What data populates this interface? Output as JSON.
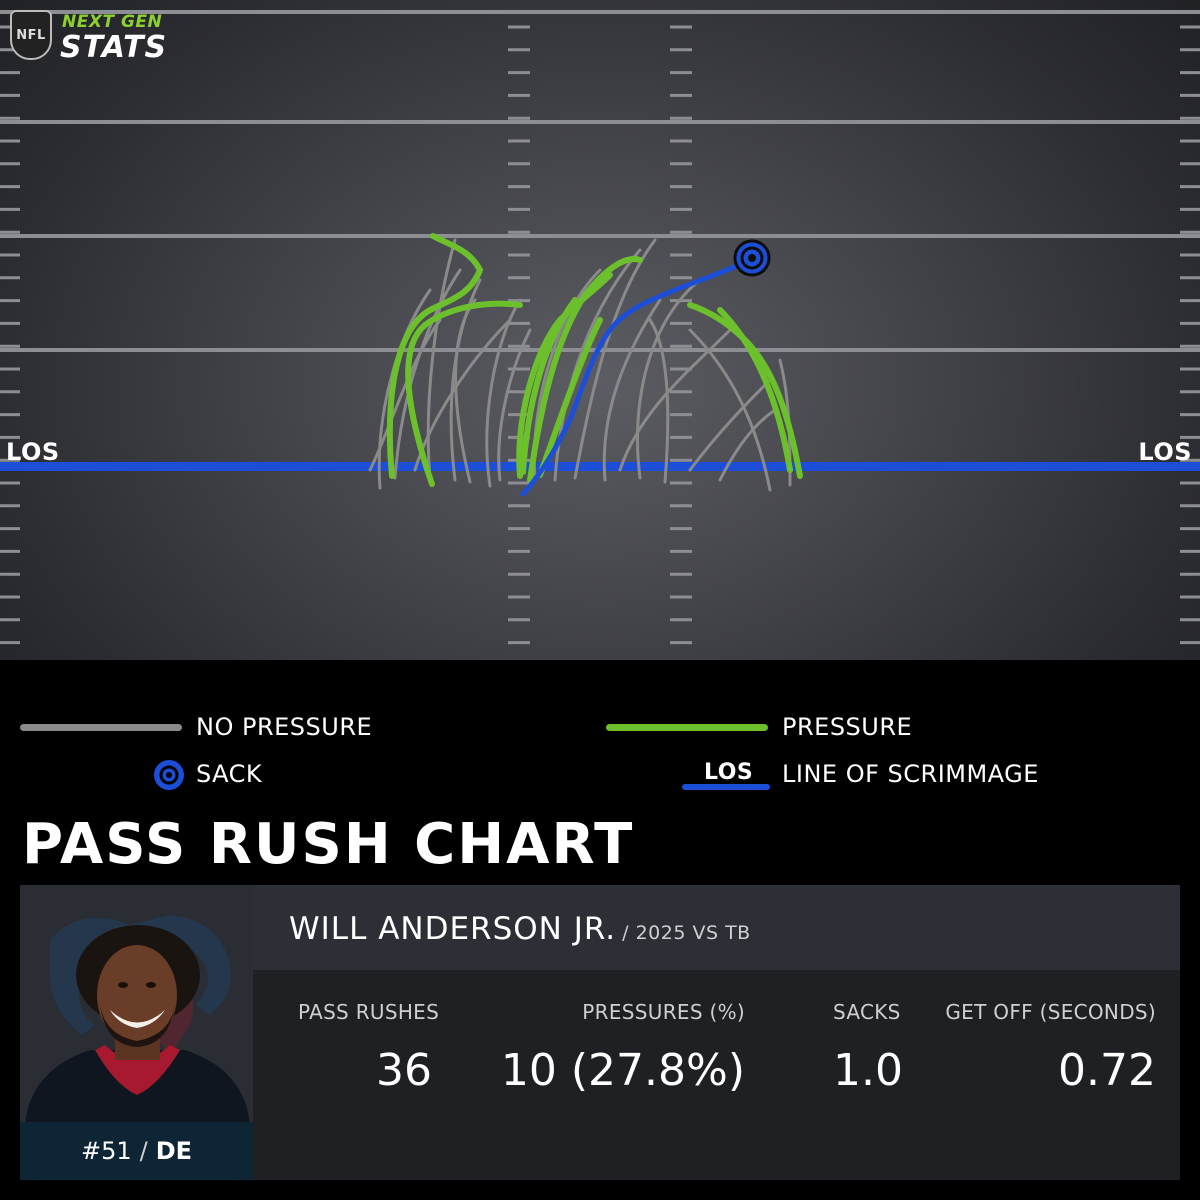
{
  "brand": {
    "line1": "NEXT GEN",
    "line2": "STATS",
    "shield_text": "NFL"
  },
  "field": {
    "los_label_left": "LOS",
    "los_label_right": "LOS"
  },
  "legend": {
    "no_pressure": "NO PRESSURE",
    "pressure": "PRESSURE",
    "sack": "SACK",
    "los_icon_text": "LOS",
    "line_of_scrimmage": "LINE OF SCRIMMAGE"
  },
  "title": "PASS RUSH CHART",
  "player": {
    "name": "WILL ANDERSON JR.",
    "meta": "/ 2025 VS TB",
    "number": "#51",
    "position": "DE"
  },
  "stats": [
    {
      "label": "PASS RUSHES",
      "value": "36"
    },
    {
      "label": "PRESSURES (%)",
      "value": "10 (27.8%)"
    },
    {
      "label": "SACKS",
      "value": "1.0"
    },
    {
      "label": "GET OFF (SECONDS)",
      "value": "0.72"
    }
  ],
  "colors": {
    "no_pressure": "#8a8a8a",
    "pressure": "#6cc02c",
    "sack": "#1c4ed8",
    "los": "#1c4ed8",
    "team_navy": "#0d2535",
    "team_red": "#a6192e"
  },
  "icons": {
    "sack": "sack-target-icon",
    "nfl": "nfl-shield-icon",
    "team": "texans-logo-icon"
  }
}
